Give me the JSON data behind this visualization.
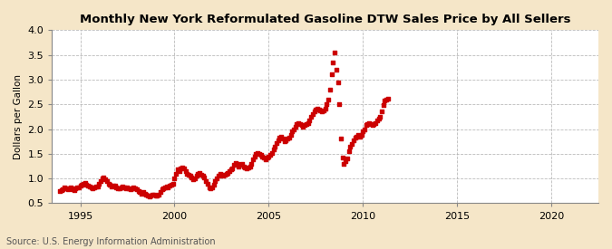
{
  "title": "Monthly New York Reformulated Gasoline DTW Sales Price by All Sellers",
  "ylabel": "Dollars per Gallon",
  "source": "Source: U.S. Energy Information Administration",
  "fig_bg_color": "#f5e6c8",
  "plot_bg_color": "#ffffff",
  "marker_color": "#cc0000",
  "marker": "s",
  "markersize": 3.5,
  "xlim": [
    1993.5,
    2022.5
  ],
  "ylim": [
    0.5,
    4.0
  ],
  "yticks": [
    0.5,
    1.0,
    1.5,
    2.0,
    2.5,
    3.0,
    3.5,
    4.0
  ],
  "xticks": [
    1995,
    2000,
    2005,
    2010,
    2015,
    2020
  ],
  "grid_color": "#aaaaaa",
  "data": {
    "dates": [
      1993.917,
      1994.0,
      1994.083,
      1994.167,
      1994.25,
      1994.333,
      1994.417,
      1994.5,
      1994.583,
      1994.667,
      1994.75,
      1994.833,
      1994.917,
      1995.0,
      1995.083,
      1995.167,
      1995.25,
      1995.333,
      1995.417,
      1995.5,
      1995.583,
      1995.667,
      1995.75,
      1995.833,
      1995.917,
      1996.0,
      1996.083,
      1996.167,
      1996.25,
      1996.333,
      1996.417,
      1996.5,
      1996.583,
      1996.667,
      1996.75,
      1996.833,
      1996.917,
      1997.0,
      1997.083,
      1997.167,
      1997.25,
      1997.333,
      1997.417,
      1997.5,
      1997.583,
      1997.667,
      1997.75,
      1997.833,
      1997.917,
      1998.0,
      1998.083,
      1998.167,
      1998.25,
      1998.333,
      1998.417,
      1998.5,
      1998.583,
      1998.667,
      1998.75,
      1998.833,
      1998.917,
      1999.0,
      1999.083,
      1999.167,
      1999.25,
      1999.333,
      1999.417,
      1999.5,
      1999.583,
      1999.667,
      1999.75,
      1999.833,
      1999.917,
      2000.0,
      2000.083,
      2000.167,
      2000.25,
      2000.333,
      2000.417,
      2000.5,
      2000.583,
      2000.667,
      2000.75,
      2000.833,
      2000.917,
      2001.0,
      2001.083,
      2001.167,
      2001.25,
      2001.333,
      2001.417,
      2001.5,
      2001.583,
      2001.667,
      2001.75,
      2001.833,
      2001.917,
      2002.0,
      2002.083,
      2002.167,
      2002.25,
      2002.333,
      2002.417,
      2002.5,
      2002.583,
      2002.667,
      2002.75,
      2002.833,
      2002.917,
      2003.0,
      2003.083,
      2003.167,
      2003.25,
      2003.333,
      2003.417,
      2003.5,
      2003.583,
      2003.667,
      2003.75,
      2003.833,
      2003.917,
      2004.0,
      2004.083,
      2004.167,
      2004.25,
      2004.333,
      2004.417,
      2004.5,
      2004.583,
      2004.667,
      2004.75,
      2004.833,
      2004.917,
      2005.0,
      2005.083,
      2005.167,
      2005.25,
      2005.333,
      2005.417,
      2005.5,
      2005.583,
      2005.667,
      2005.75,
      2005.833,
      2005.917,
      2006.0,
      2006.083,
      2006.167,
      2006.25,
      2006.333,
      2006.417,
      2006.5,
      2006.583,
      2006.667,
      2006.75,
      2006.833,
      2006.917,
      2007.0,
      2007.083,
      2007.167,
      2007.25,
      2007.333,
      2007.417,
      2007.5,
      2007.583,
      2007.667,
      2007.75,
      2007.833,
      2007.917,
      2008.0,
      2008.083,
      2008.167,
      2008.25,
      2008.333,
      2008.417,
      2008.5,
      2008.583,
      2008.667,
      2008.75,
      2008.833,
      2008.917,
      2009.0,
      2009.083,
      2009.167,
      2009.25,
      2009.333,
      2009.417,
      2009.5,
      2009.583,
      2009.667,
      2009.75,
      2009.833,
      2009.917,
      2010.0,
      2010.083,
      2010.167,
      2010.25,
      2010.333,
      2010.417,
      2010.5,
      2010.583,
      2010.667,
      2010.75,
      2010.833,
      2010.917,
      2011.0,
      2011.083,
      2011.167,
      2011.25,
      2011.333
    ],
    "values": [
      0.75,
      0.77,
      0.79,
      0.82,
      0.8,
      0.78,
      0.8,
      0.82,
      0.78,
      0.76,
      0.8,
      0.82,
      0.82,
      0.85,
      0.88,
      0.9,
      0.92,
      0.88,
      0.86,
      0.84,
      0.82,
      0.8,
      0.82,
      0.84,
      0.84,
      0.9,
      0.95,
      1.0,
      1.02,
      0.98,
      0.95,
      0.9,
      0.88,
      0.84,
      0.85,
      0.86,
      0.82,
      0.8,
      0.8,
      0.82,
      0.84,
      0.82,
      0.8,
      0.82,
      0.8,
      0.78,
      0.8,
      0.82,
      0.8,
      0.78,
      0.75,
      0.73,
      0.7,
      0.72,
      0.7,
      0.68,
      0.65,
      0.63,
      0.65,
      0.67,
      0.67,
      0.65,
      0.65,
      0.67,
      0.72,
      0.78,
      0.8,
      0.82,
      0.84,
      0.82,
      0.85,
      0.88,
      0.9,
      1.0,
      1.1,
      1.18,
      1.15,
      1.2,
      1.22,
      1.2,
      1.15,
      1.1,
      1.08,
      1.05,
      1.02,
      0.98,
      1.0,
      1.05,
      1.1,
      1.12,
      1.08,
      1.05,
      1.02,
      0.95,
      0.9,
      0.82,
      0.8,
      0.82,
      0.88,
      0.95,
      1.0,
      1.05,
      1.1,
      1.08,
      1.05,
      1.08,
      1.1,
      1.12,
      1.15,
      1.18,
      1.2,
      1.28,
      1.32,
      1.3,
      1.25,
      1.28,
      1.3,
      1.25,
      1.22,
      1.2,
      1.22,
      1.25,
      1.3,
      1.38,
      1.45,
      1.5,
      1.52,
      1.5,
      1.48,
      1.45,
      1.42,
      1.38,
      1.42,
      1.45,
      1.48,
      1.52,
      1.58,
      1.65,
      1.72,
      1.78,
      1.82,
      1.85,
      1.8,
      1.75,
      1.78,
      1.8,
      1.82,
      1.88,
      1.95,
      2.0,
      2.05,
      2.1,
      2.12,
      2.1,
      2.08,
      2.05,
      2.08,
      2.1,
      2.12,
      2.18,
      2.25,
      2.3,
      2.35,
      2.4,
      2.42,
      2.4,
      2.38,
      2.35,
      2.38,
      2.42,
      2.5,
      2.6,
      2.8,
      3.1,
      3.35,
      3.55,
      3.2,
      2.95,
      2.5,
      1.8,
      1.42,
      1.3,
      1.35,
      1.4,
      1.55,
      1.65,
      1.7,
      1.78,
      1.82,
      1.85,
      1.88,
      1.85,
      1.88,
      1.95,
      2.0,
      2.08,
      2.1,
      2.12,
      2.1,
      2.08,
      2.1,
      2.12,
      2.18,
      2.22,
      2.25,
      2.35,
      2.48,
      2.58,
      2.6,
      2.62
    ]
  }
}
